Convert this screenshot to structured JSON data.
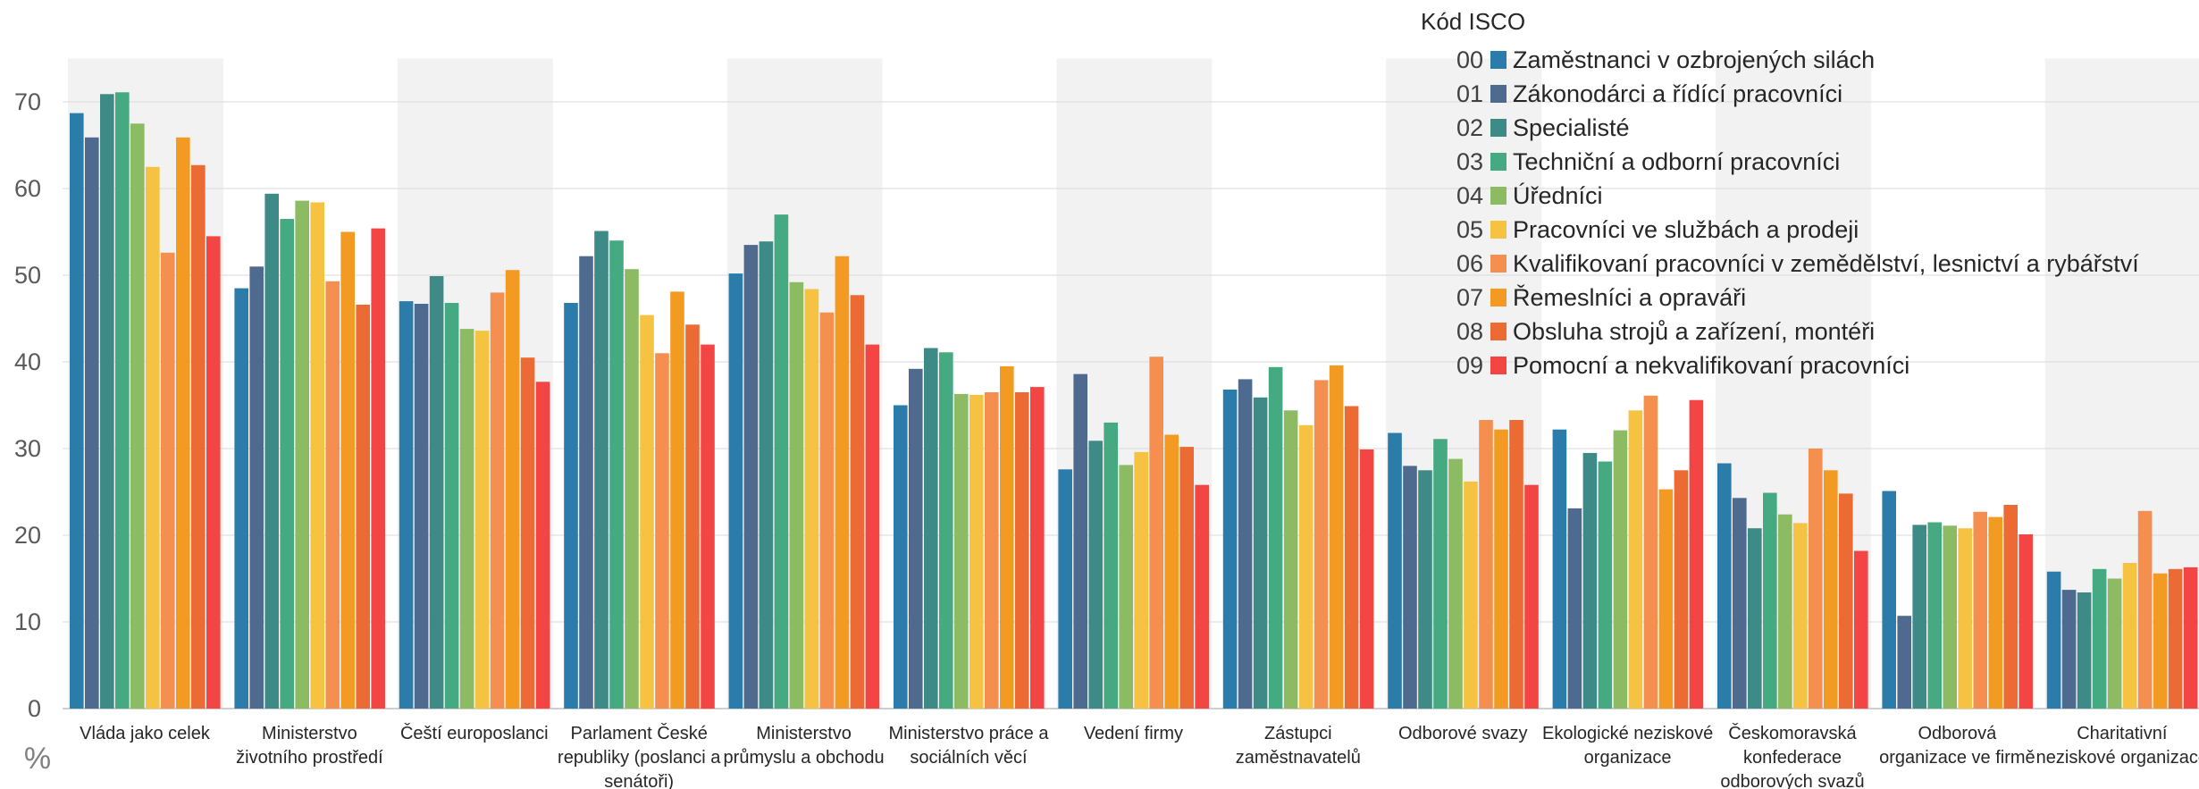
{
  "chart_data": {
    "type": "bar",
    "ylabel": "%",
    "ylim": [
      0,
      75
    ],
    "yticks": [
      "0",
      "10",
      "20",
      "30",
      "40",
      "50",
      "60",
      "70"
    ],
    "grid": true,
    "legend_position": "top-right",
    "legend_title": "Kód ISCO",
    "categories": [
      [
        "Vláda jako celek"
      ],
      [
        "Ministerstvo",
        "životního prostředí"
      ],
      [
        "Čeští europoslanci"
      ],
      [
        "Parlament České",
        "republiky (poslanci a",
        "senátoři)"
      ],
      [
        "Ministerstvo",
        "průmyslu a obchodu"
      ],
      [
        "Ministerstvo práce a",
        "sociálních věcí"
      ],
      [
        "Vedení firmy"
      ],
      [
        "Zástupci",
        "zaměstnavatelů"
      ],
      [
        "Odborové svazy"
      ],
      [
        "Ekologické neziskové",
        "organizace"
      ],
      [
        "Českomoravská",
        "konfederace",
        "odborových svazů"
      ],
      [
        "Odborová",
        "organizace ve firmě"
      ],
      [
        "Charitativní",
        "neziskové organizace"
      ]
    ],
    "series": [
      {
        "code": "00",
        "name": "Zaměstnanci v ozbrojených silách",
        "color": "#2b7bab",
        "values": [
          68.7,
          48.5,
          47.0,
          46.8,
          50.2,
          35.0,
          27.6,
          36.8,
          31.8,
          32.2,
          28.3,
          25.1,
          15.8
        ]
      },
      {
        "code": "01",
        "name": "Zákonodárci a řídící pracovníci",
        "color": "#4f6a8f",
        "values": [
          65.9,
          51.0,
          46.7,
          52.2,
          53.5,
          39.2,
          38.6,
          38.0,
          28.0,
          23.1,
          24.3,
          10.7,
          13.7
        ]
      },
      {
        "code": "02",
        "name": "Specialisté",
        "color": "#3e8a87",
        "values": [
          70.9,
          59.4,
          49.9,
          55.1,
          53.9,
          41.6,
          30.9,
          35.9,
          27.5,
          29.5,
          20.8,
          21.2,
          13.4
        ]
      },
      {
        "code": "03",
        "name": "Techniční a odborní pracovníci",
        "color": "#45a981",
        "values": [
          71.1,
          56.5,
          46.8,
          54.0,
          57.0,
          41.1,
          33.0,
          39.4,
          31.1,
          28.5,
          24.9,
          21.5,
          16.1
        ]
      },
      {
        "code": "04",
        "name": "Úředníci",
        "color": "#8cbb63",
        "values": [
          67.5,
          58.6,
          43.8,
          50.7,
          49.2,
          36.3,
          28.1,
          34.4,
          28.8,
          32.1,
          22.4,
          21.1,
          15.0
        ]
      },
      {
        "code": "05",
        "name": "Pracovníci ve službách a prodeji",
        "color": "#f5c242",
        "values": [
          62.5,
          58.4,
          43.6,
          45.4,
          48.4,
          36.2,
          29.6,
          32.7,
          26.2,
          34.4,
          21.4,
          20.8,
          16.8
        ]
      },
      {
        "code": "06",
        "name": "Kvalifikovaní pracovníci v zemědělství, lesnictví a rybářství",
        "color": "#f58f4f",
        "values": [
          52.6,
          49.3,
          48.0,
          41.0,
          45.7,
          36.5,
          40.6,
          37.9,
          33.3,
          36.1,
          30.0,
          22.7,
          22.8
        ]
      },
      {
        "code": "07",
        "name": "Řemeslníci a opraváři",
        "color": "#f39a22",
        "values": [
          65.9,
          55.0,
          50.6,
          48.1,
          52.2,
          39.5,
          31.6,
          39.6,
          32.2,
          25.3,
          27.5,
          22.1,
          15.6
        ]
      },
      {
        "code": "08",
        "name": "Obsluha strojů a zařízení, montéři",
        "color": "#ec6a33",
        "values": [
          62.7,
          46.6,
          40.5,
          44.3,
          47.7,
          36.5,
          30.2,
          34.9,
          33.3,
          27.5,
          24.8,
          23.5,
          16.1
        ]
      },
      {
        "code": "09",
        "name": "Pomocní a nekvalifikovaní pracovníci",
        "color": "#f44545",
        "values": [
          54.5,
          55.4,
          37.7,
          42.0,
          42.0,
          37.1,
          25.8,
          29.9,
          25.8,
          35.6,
          18.2,
          20.1,
          16.3
        ]
      }
    ]
  }
}
